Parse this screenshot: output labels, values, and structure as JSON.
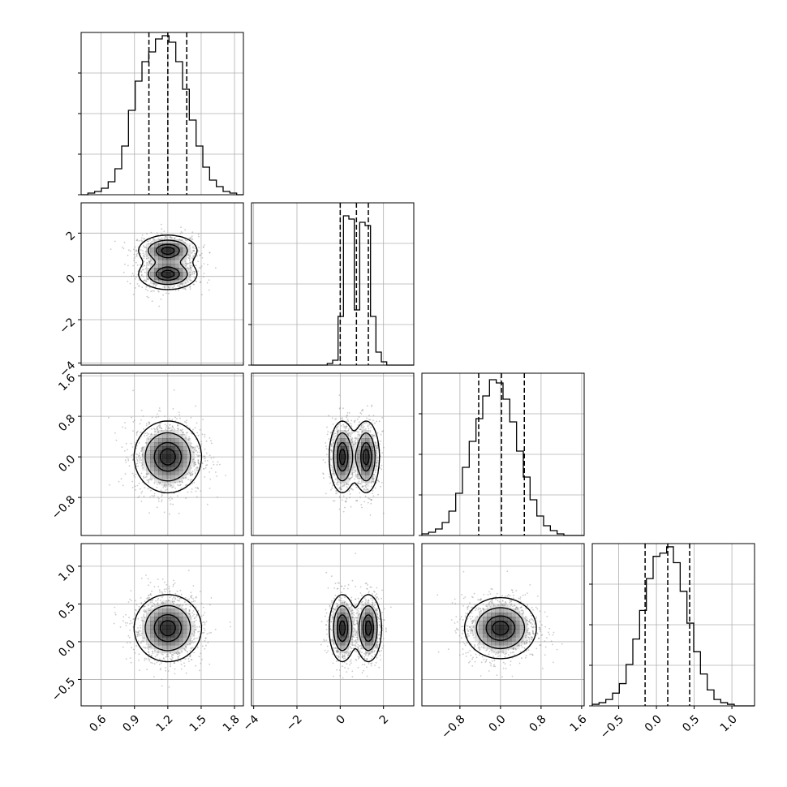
{
  "chart_data": {
    "type": "corner",
    "parameters": [
      {
        "range": [
          0.42,
          1.88
        ],
        "ticks": [
          0.6,
          0.9,
          1.2,
          1.5,
          1.8
        ],
        "tick_labels": [
          "0.6",
          "0.9",
          "1.2",
          "1.5",
          "1.8"
        ],
        "quantiles": [
          1.03,
          1.2,
          1.37
        ]
      },
      {
        "range": [
          -4.1,
          3.4
        ],
        "ticks": [
          -4,
          -2,
          0,
          2
        ],
        "tick_labels": [
          "−4",
          "−2",
          "0",
          "2"
        ],
        "quantiles": [
          0.0,
          0.75,
          1.3
        ]
      },
      {
        "range": [
          -1.55,
          1.65
        ],
        "ticks": [
          -0.8,
          0.0,
          0.8,
          1.6
        ],
        "tick_labels": [
          "−0.8",
          "0.0",
          "0.8",
          "1.6"
        ],
        "quantiles": [
          -0.43,
          0.02,
          0.47
        ]
      },
      {
        "range": [
          -0.85,
          1.3
        ],
        "ticks": [
          -0.5,
          0.0,
          0.5,
          1.0
        ],
        "tick_labels": [
          "−0.5",
          "0.0",
          "0.5",
          "1.0"
        ],
        "quantiles": [
          -0.15,
          0.15,
          0.44
        ]
      }
    ],
    "y_tick_labels": {
      "1": [
        "−4",
        "−2",
        "0",
        "2"
      ],
      "2": [
        "−0.8",
        "0.0",
        "0.8",
        "1.6"
      ],
      "3": [
        "−0.5",
        "0.0",
        "0.5",
        "1.0"
      ]
    },
    "histograms": [
      {
        "edges": [
          0.42,
          1.88
        ],
        "counts": [
          0,
          1,
          2,
          4,
          8,
          16,
          30,
          52,
          70,
          82,
          88,
          96,
          98,
          94,
          82,
          65,
          46,
          30,
          17,
          9,
          5,
          2,
          1,
          0
        ],
        "ymax": 100
      },
      {
        "edges": [
          -4.1,
          3.4
        ],
        "counts": [
          0,
          0,
          0,
          0,
          0,
          0,
          0,
          0,
          0,
          0,
          0,
          0,
          0,
          0,
          1,
          3,
          30,
          92,
          90,
          34,
          88,
          86,
          30,
          8,
          2,
          0,
          0,
          0,
          0,
          0
        ],
        "ymax": 100
      },
      {
        "edges": [
          -1.55,
          1.65
        ],
        "counts": [
          1,
          2,
          4,
          8,
          15,
          26,
          42,
          58,
          72,
          86,
          96,
          94,
          84,
          70,
          52,
          36,
          22,
          12,
          6,
          3,
          1,
          0,
          0,
          0
        ],
        "ymax": 100
      },
      {
        "edges": [
          -0.85,
          1.3
        ],
        "counts": [
          1,
          2,
          4,
          8,
          14,
          26,
          42,
          60,
          80,
          94,
          96,
          100,
          90,
          72,
          52,
          34,
          20,
          10,
          4,
          2,
          1,
          0,
          0,
          0
        ],
        "ymax": 102
      }
    ],
    "pairs": [
      {
        "row": 1,
        "col": 0,
        "modes": [
          {
            "mx": 1.2,
            "my": 0.1
          },
          {
            "mx": 1.2,
            "my": 1.2
          }
        ],
        "sx": 0.13,
        "sy": 0.35
      },
      {
        "row": 2,
        "col": 0,
        "modes": [
          {
            "mx": 1.2,
            "my": 0.0
          }
        ],
        "sx": 0.15,
        "sy": 0.35
      },
      {
        "row": 2,
        "col": 1,
        "modes": [
          {
            "mx": 0.1,
            "my": 0.0
          },
          {
            "mx": 1.2,
            "my": 0.0
          }
        ],
        "sx": 0.3,
        "sy": 0.35
      },
      {
        "row": 3,
        "col": 0,
        "modes": [
          {
            "mx": 1.2,
            "my": 0.18
          }
        ],
        "sx": 0.15,
        "sy": 0.22
      },
      {
        "row": 3,
        "col": 1,
        "modes": [
          {
            "mx": 0.1,
            "my": 0.18
          },
          {
            "mx": 1.3,
            "my": 0.18
          }
        ],
        "sx": 0.3,
        "sy": 0.22
      },
      {
        "row": 3,
        "col": 2,
        "modes": [
          {
            "mx": 0.0,
            "my": 0.18
          }
        ],
        "sx": 0.35,
        "sy": 0.2
      }
    ],
    "grid": true,
    "quantile_lines": "dashed",
    "colors": {
      "line": "#000000",
      "grid": "#b0b0b0",
      "points": "#8a8a8a",
      "density": "#000000"
    }
  }
}
